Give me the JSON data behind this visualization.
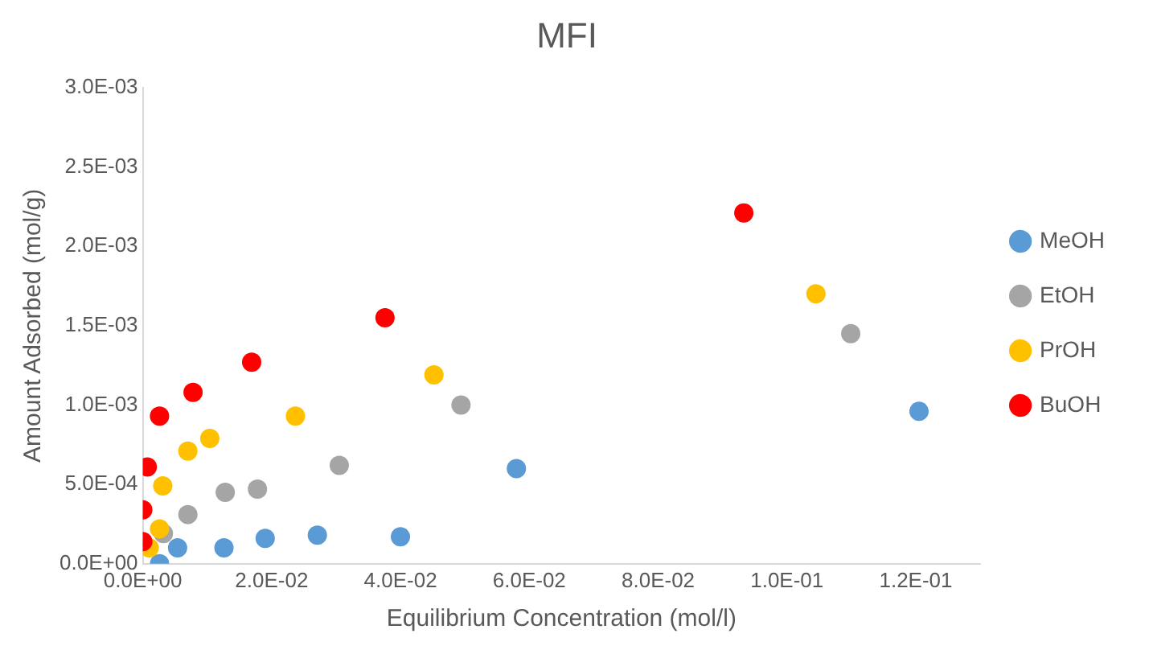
{
  "chart_data": {
    "type": "scatter",
    "title": "MFI",
    "xlabel": "Equilibrium Concentration (mol/l)",
    "ylabel": "Amount Adsorbed (mol/g)",
    "xlim": [
      0,
      0.13
    ],
    "xticks": [
      {
        "value": 0,
        "label": "0.0E+00"
      },
      {
        "value": 0.02,
        "label": "2.0E-02"
      },
      {
        "value": 0.04,
        "label": "4.0E-02"
      },
      {
        "value": 0.06,
        "label": "6.0E-02"
      },
      {
        "value": 0.08,
        "label": "8.0E-02"
      },
      {
        "value": 0.1,
        "label": "1.0E-01"
      },
      {
        "value": 0.12,
        "label": "1.2E-01"
      }
    ],
    "ylim": [
      0,
      0.003
    ],
    "yticks": [
      {
        "value": 0,
        "label": "0.0E+00"
      },
      {
        "value": 0.0005,
        "label": "5.0E-04"
      },
      {
        "value": 0.001,
        "label": "1.0E-03"
      },
      {
        "value": 0.0015,
        "label": "1.5E-03"
      },
      {
        "value": 0.002,
        "label": "2.0E-03"
      },
      {
        "value": 0.0025,
        "label": "2.5E-03"
      },
      {
        "value": 0.003,
        "label": "3.0E-03"
      }
    ],
    "grid": false,
    "legend": "right",
    "marker": "circle",
    "series": [
      {
        "name": "MeOH",
        "color": "#5b9bd5",
        "x": [
          0.0026,
          0.0054,
          0.0126,
          0.019,
          0.0271,
          0.04,
          0.058,
          0.1205
        ],
        "values": [
          0.0,
          0.0001,
          0.0001,
          0.00016,
          0.00018,
          0.00017,
          0.0006,
          0.00096
        ]
      },
      {
        "name": "EtOH",
        "color": "#a5a5a5",
        "x": [
          0.0032,
          0.007,
          0.0128,
          0.0178,
          0.0305,
          0.0494,
          0.1099
        ],
        "values": [
          0.00019,
          0.00031,
          0.00045,
          0.00047,
          0.00062,
          0.001,
          0.00145
        ]
      },
      {
        "name": "PrOH",
        "color": "#ffc000",
        "x": [
          0.001,
          0.0026,
          0.0031,
          0.007,
          0.0104,
          0.0237,
          0.0452,
          0.1045
        ],
        "values": [
          0.0001,
          0.00022,
          0.00049,
          0.00071,
          0.00079,
          0.00093,
          0.00119,
          0.0017
        ]
      },
      {
        "name": "BuOH",
        "color": "#ff0000",
        "x": [
          0,
          0,
          0.0007,
          0.0026,
          0.0078,
          0.0169,
          0.0376,
          0.0933
        ],
        "values": [
          0.00014,
          0.00034,
          0.00061,
          0.00093,
          0.00108,
          0.00127,
          0.00155,
          0.00221
        ]
      }
    ]
  }
}
